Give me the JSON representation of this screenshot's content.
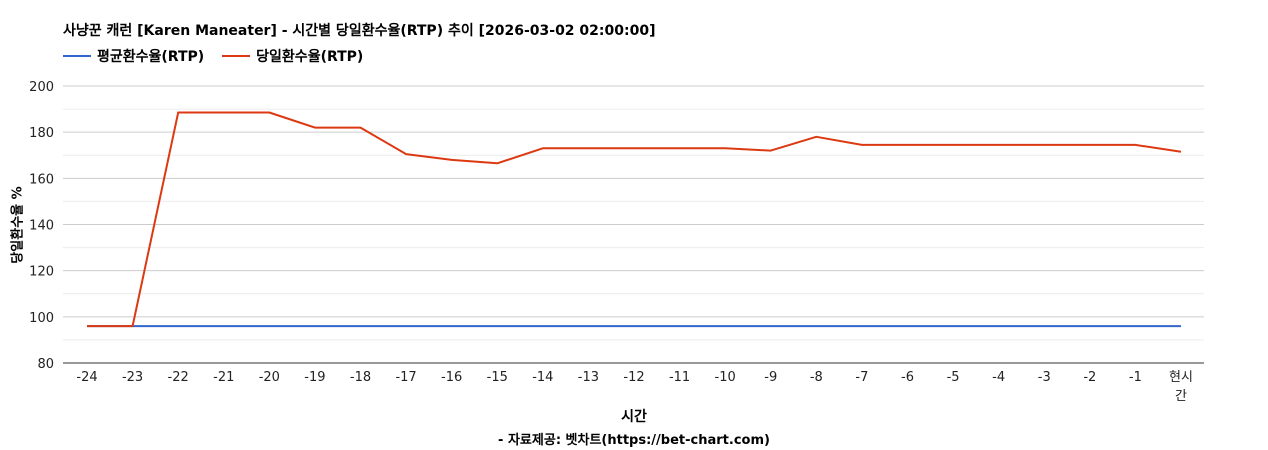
{
  "chart_data": {
    "type": "line",
    "title": "사냥꾼 캐런 [Karen Maneater] - 시간별 당일환수율(RTP) 추이 [2026-03-02 02:00:00]",
    "xlabel": "시간",
    "ylabel": "당일환수율 %",
    "source": "- 자료제공: 벳차트(https://bet-chart.com)",
    "categories": [
      "-24",
      "-23",
      "-22",
      "-21",
      "-20",
      "-19",
      "-18",
      "-17",
      "-16",
      "-15",
      "-14",
      "-13",
      "-12",
      "-11",
      "-10",
      "-9",
      "-8",
      "-7",
      "-6",
      "-5",
      "-4",
      "-3",
      "-2",
      "-1",
      "현시간"
    ],
    "yticks": [
      80,
      100,
      120,
      140,
      160,
      180,
      200
    ],
    "ylim": [
      80,
      200
    ],
    "grid": true,
    "legend_position": "top-left",
    "series": [
      {
        "name": "평균환수율(RTP)",
        "color": "#3366cc",
        "values": [
          96,
          96,
          96,
          96,
          96,
          96,
          96,
          96,
          96,
          96,
          96,
          96,
          96,
          96,
          96,
          96,
          96,
          96,
          96,
          96,
          96,
          96,
          96,
          96,
          96
        ]
      },
      {
        "name": "당일환수율(RTP)",
        "color": "#dc3912",
        "values": [
          96,
          96,
          188.5,
          188.5,
          188.5,
          182,
          182,
          170.5,
          168,
          166.5,
          173,
          173,
          173,
          173,
          173,
          172,
          178,
          174.5,
          174.5,
          174.5,
          174.5,
          174.5,
          174.5,
          174.5,
          171.5
        ]
      }
    ]
  }
}
